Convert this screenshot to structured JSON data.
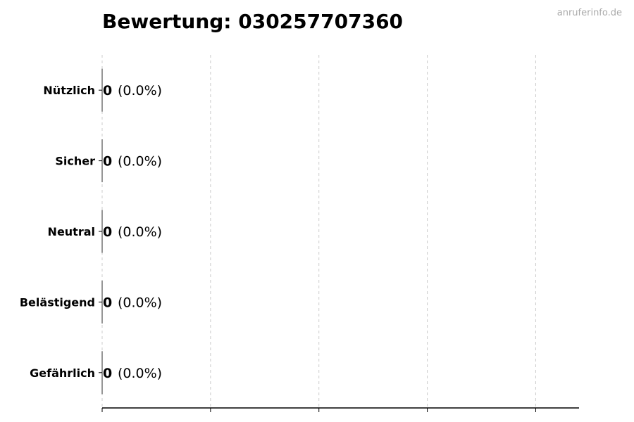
{
  "chart_data": {
    "type": "bar",
    "orientation": "horizontal",
    "title": "Bewertung: 030257707360",
    "watermark": "anruferinfo.de",
    "categories": [
      "Nützlich",
      "Sicher",
      "Neutral",
      "Belästigend",
      "Gefährlich"
    ],
    "values": [
      0,
      0,
      0,
      0,
      0
    ],
    "data_labels": [
      {
        "count": "0",
        "percent": "(0.0%)"
      },
      {
        "count": "0",
        "percent": "(0.0%)"
      },
      {
        "count": "0",
        "percent": "(0.0%)"
      },
      {
        "count": "0",
        "percent": "(0.0%)"
      },
      {
        "count": "0",
        "percent": "(0.0%)"
      }
    ],
    "xlim": [
      0,
      4.4
    ],
    "xticks": [
      0,
      1,
      2,
      3,
      4
    ],
    "xtick_labels_shown": false,
    "grid": "x, dashed",
    "xlabel": "",
    "ylabel": "",
    "colors": {
      "bar_edge": "#333333",
      "grid": "#cccccc",
      "axis": "#000000",
      "watermark": "#aaaaaa"
    }
  }
}
